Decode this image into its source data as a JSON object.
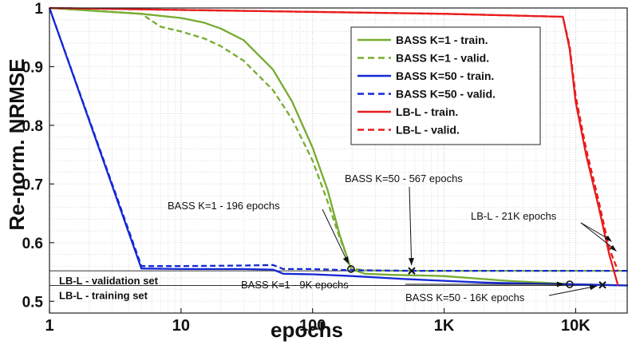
{
  "chart_data": {
    "type": "line",
    "xlabel": "epochs",
    "ylabel": "Re-norm. NRMSE",
    "xscale": "log",
    "xlim": [
      1,
      25000
    ],
    "ylim": [
      0.48,
      1.0
    ],
    "grid": "minor-dotted",
    "xticks": [
      {
        "value": 1,
        "label": "1"
      },
      {
        "value": 10,
        "label": "10"
      },
      {
        "value": 100,
        "label": "100"
      },
      {
        "value": 1000,
        "label": "1K"
      },
      {
        "value": 10000,
        "label": "10K"
      }
    ],
    "yticks": [
      {
        "value": 0.5,
        "label": "0.5"
      },
      {
        "value": 0.6,
        "label": "0.6"
      },
      {
        "value": 0.7,
        "label": "0.7"
      },
      {
        "value": 0.8,
        "label": "0.8"
      },
      {
        "value": 0.9,
        "label": "0.9"
      },
      {
        "value": 1.0,
        "label": "1"
      }
    ],
    "legend_position": "top-right",
    "series": [
      {
        "name": "BASS K=1 - train.",
        "color": "#77ac30",
        "dash": "solid",
        "x": [
          1,
          5,
          10,
          15,
          20,
          30,
          50,
          70,
          100,
          130,
          160,
          196,
          250,
          400,
          700,
          1000,
          3000,
          10000,
          25000
        ],
        "y": [
          1.0,
          0.99,
          0.983,
          0.975,
          0.965,
          0.945,
          0.895,
          0.84,
          0.762,
          0.69,
          0.615,
          0.555,
          0.547,
          0.545,
          0.544,
          0.543,
          0.535,
          0.529,
          0.527
        ]
      },
      {
        "name": "BASS K=1 - valid.",
        "color": "#77ac30",
        "dash": "dashed",
        "x": [
          1,
          5,
          7,
          10,
          15,
          20,
          30,
          50,
          70,
          100,
          130,
          160,
          180,
          196,
          250,
          500,
          1000,
          3000,
          10000,
          25000
        ],
        "y": [
          1.0,
          0.99,
          0.968,
          0.96,
          0.948,
          0.935,
          0.91,
          0.86,
          0.81,
          0.74,
          0.67,
          0.61,
          0.58,
          0.556,
          0.553,
          0.552,
          0.552,
          0.552,
          0.552,
          0.552
        ]
      },
      {
        "name": "BASS K=50 - train.",
        "color": "#1428d4",
        "dash": "solid",
        "x": [
          1,
          5,
          10,
          30,
          50,
          60,
          100,
          200,
          500,
          1000,
          2000,
          5000,
          10000,
          25000
        ],
        "y": [
          1.0,
          0.556,
          0.555,
          0.555,
          0.554,
          0.547,
          0.546,
          0.543,
          0.538,
          0.535,
          0.532,
          0.53,
          0.529,
          0.527
        ]
      },
      {
        "name": "BASS K=50 - valid.",
        "color": "#1428d4",
        "dash": "dashed",
        "x": [
          1,
          5,
          10,
          30,
          50,
          60,
          100,
          200,
          567,
          1000,
          3000,
          10000,
          25000
        ],
        "y": [
          1.0,
          0.56,
          0.56,
          0.561,
          0.562,
          0.555,
          0.555,
          0.553,
          0.552,
          0.552,
          0.552,
          0.552,
          0.552
        ]
      },
      {
        "name": "LB-L - train.",
        "color": "#e81c1c",
        "dash": "solid",
        "x": [
          1,
          1000,
          8000,
          9000,
          10000,
          12000,
          15000,
          18000,
          21000
        ],
        "y": [
          1.0,
          0.99,
          0.985,
          0.93,
          0.84,
          0.75,
          0.66,
          0.58,
          0.527
        ]
      },
      {
        "name": "LB-L - valid.",
        "color": "#e81c1c",
        "dash": "dashed",
        "x": [
          1,
          1000,
          8000,
          9000,
          10000,
          12000,
          15000,
          18000,
          21000
        ],
        "y": [
          1.0,
          0.99,
          0.985,
          0.935,
          0.85,
          0.76,
          0.67,
          0.59,
          0.552
        ]
      }
    ],
    "reference_lines": [
      {
        "label": "LB-L - validation set",
        "y": 0.552
      },
      {
        "label": "LB-L - training set",
        "y": 0.527
      }
    ],
    "annotations": [
      {
        "text": "BASS K=1 - 196 epochs",
        "x": 196,
        "y": 0.555,
        "marker": "o"
      },
      {
        "text": "BASS K=50 - 567 epochs",
        "x": 567,
        "y": 0.552,
        "marker": "x"
      },
      {
        "text": "LB-L -  21K epochs",
        "x": 21000,
        "y": 0.552,
        "marker": "none"
      },
      {
        "text": "BASS K=1 - 9K epochs",
        "x": 9000,
        "y": 0.529,
        "marker": "o"
      },
      {
        "text": "BASS K=50 - 16K epochs",
        "x": 16000,
        "y": 0.528,
        "marker": "x"
      }
    ]
  }
}
